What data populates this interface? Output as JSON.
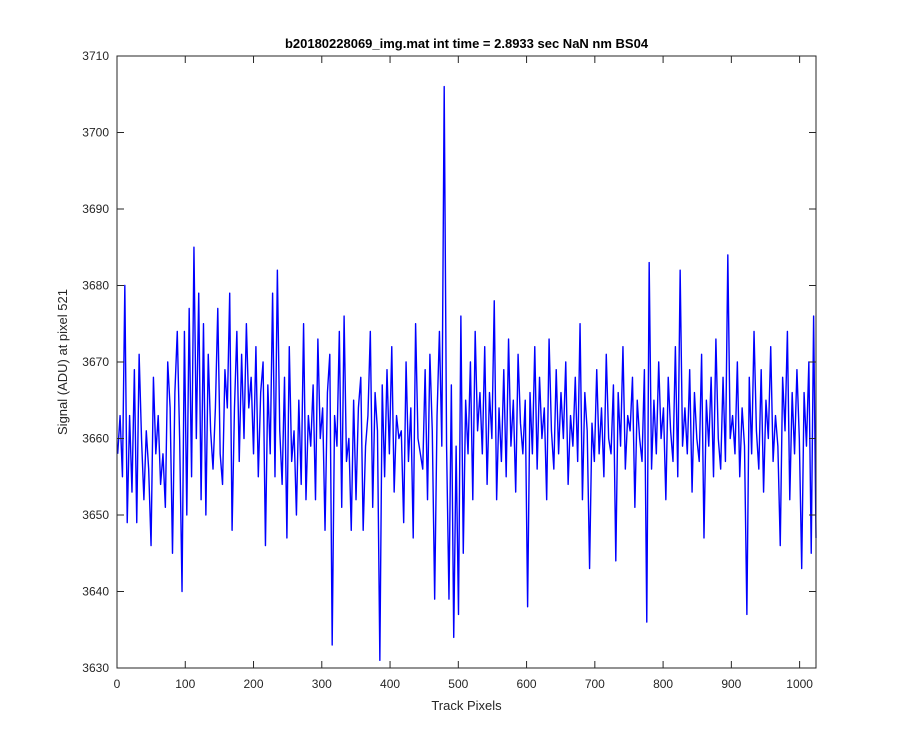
{
  "chart_data": {
    "type": "line",
    "title": "b20180228069_img.mat int time = 2.8933 sec  NaN nm BS04",
    "xlabel": "Track Pixels",
    "ylabel": "Signal (ADU) at pixel 521",
    "xlim": [
      0,
      1024
    ],
    "ylim": [
      3630,
      3710
    ],
    "xticks": [
      "0",
      "100",
      "200",
      "300",
      "400",
      "500",
      "600",
      "700",
      "800",
      "900",
      "1000"
    ],
    "yticks": [
      "3630",
      "3640",
      "3650",
      "3660",
      "3670",
      "3680",
      "3690",
      "3700",
      "3710"
    ],
    "grid": false,
    "series": [
      {
        "color": "#0000ff",
        "x_start": 1,
        "x_step": 1,
        "values": [
          3658,
          3663,
          3655,
          3680,
          3649,
          3663,
          3653,
          3669,
          3649,
          3671,
          3660,
          3652,
          3661,
          3656,
          3646,
          3668,
          3658,
          3663,
          3654,
          3658,
          3651,
          3670,
          3664,
          3645,
          3666,
          3674,
          3660,
          3640,
          3674,
          3650,
          3677,
          3655,
          3685,
          3660,
          3679,
          3652,
          3675,
          3650,
          3671,
          3661,
          3656,
          3664,
          3677,
          3658,
          3654,
          3669,
          3664,
          3679,
          3648,
          3664,
          3674,
          3657,
          3671,
          3660,
          3675,
          3664,
          3668,
          3658,
          3672,
          3655,
          3666,
          3670,
          3646,
          3667,
          3658,
          3679,
          3655,
          3682,
          3661,
          3654,
          3668,
          3647,
          3672,
          3657,
          3661,
          3650,
          3665,
          3654,
          3675,
          3652,
          3663,
          3659,
          3667,
          3652,
          3673,
          3660,
          3664,
          3648,
          3666,
          3671,
          3633,
          3663,
          3659,
          3674,
          3651,
          3676,
          3657,
          3660,
          3648,
          3665,
          3652,
          3664,
          3668,
          3648,
          3659,
          3663,
          3674,
          3651,
          3666,
          3661,
          3631,
          3667,
          3655,
          3669,
          3658,
          3672,
          3653,
          3663,
          3660,
          3661,
          3649,
          3670,
          3657,
          3664,
          3647,
          3675,
          3660,
          3658,
          3656,
          3669,
          3652,
          3671,
          3661,
          3639,
          3663,
          3674,
          3659,
          3706,
          3659,
          3639,
          3667,
          3634,
          3659,
          3637,
          3676,
          3645,
          3665,
          3658,
          3670,
          3652,
          3674,
          3661,
          3666,
          3658,
          3672,
          3654,
          3666,
          3660,
          3678,
          3652,
          3664,
          3657,
          3669,
          3655,
          3673,
          3659,
          3665,
          3653,
          3671,
          3662,
          3658,
          3665,
          3638,
          3666,
          3658,
          3672,
          3656,
          3668,
          3660,
          3664,
          3652,
          3673,
          3661,
          3656,
          3669,
          3658,
          3666,
          3660,
          3670,
          3654,
          3663,
          3659,
          3668,
          3657,
          3675,
          3652,
          3666,
          3661,
          3643,
          3662,
          3657,
          3669,
          3658,
          3664,
          3655,
          3671,
          3660,
          3658,
          3667,
          3644,
          3666,
          3659,
          3672,
          3656,
          3663,
          3661,
          3668,
          3651,
          3665,
          3660,
          3657,
          3669,
          3636,
          3683,
          3656,
          3665,
          3658,
          3670,
          3660,
          3664,
          3652,
          3668,
          3661,
          3657,
          3672,
          3655,
          3682,
          3659,
          3664,
          3658,
          3669,
          3653,
          3666,
          3660,
          3657,
          3671,
          3647,
          3665,
          3659,
          3668,
          3655,
          3673,
          3660,
          3656,
          3668,
          3657,
          3684,
          3660,
          3663,
          3658,
          3670,
          3655,
          3664,
          3659,
          3637,
          3668,
          3658,
          3674,
          3661,
          3656,
          3669,
          3653,
          3665,
          3660,
          3672,
          3657,
          3663,
          3659,
          3646,
          3668,
          3661,
          3674,
          3652,
          3666,
          3658,
          3669,
          3660,
          3643,
          3666,
          3659,
          3670,
          3645,
          3676,
          3647
        ]
      }
    ]
  }
}
